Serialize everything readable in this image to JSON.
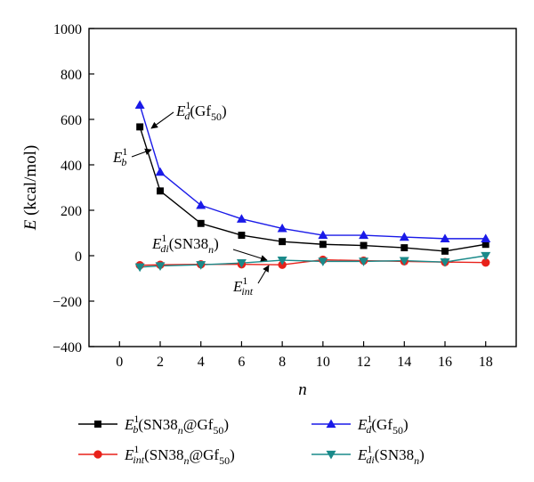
{
  "chart_data": {
    "type": "line",
    "xlabel_html": "n",
    "ylabel_prefix": "E",
    "ylabel_suffix": "(kcal/mol)",
    "xlim": [
      -1.5,
      19.5
    ],
    "ylim": [
      -400,
      1000
    ],
    "x_ticks": [
      0,
      2,
      4,
      6,
      8,
      10,
      12,
      14,
      16,
      18
    ],
    "y_ticks": [
      -400,
      -200,
      0,
      200,
      400,
      600,
      800,
      1000
    ],
    "x": [
      1,
      2,
      4,
      6,
      8,
      10,
      12,
      14,
      16,
      18
    ],
    "grid": false,
    "legend_position": "bottom",
    "series": [
      {
        "key": "eb",
        "color": "#000000",
        "marker": "square",
        "values": [
          567,
          285,
          142,
          90,
          62,
          50,
          45,
          35,
          20,
          50
        ]
      },
      {
        "key": "eint",
        "color": "#e8211a",
        "marker": "circle",
        "values": [
          -42,
          -40,
          -38,
          -38,
          -40,
          -18,
          -22,
          -25,
          -28,
          -30
        ]
      },
      {
        "key": "ed",
        "color": "#1a1ae8",
        "marker": "triangle-up",
        "values": [
          663,
          368,
          222,
          162,
          120,
          90,
          90,
          82,
          75,
          75
        ]
      },
      {
        "key": "edi",
        "color": "#1a8a8a",
        "marker": "triangle-down",
        "values": [
          -50,
          -45,
          -40,
          -32,
          -20,
          -25,
          -25,
          -22,
          -28,
          0
        ]
      }
    ],
    "legend": {
      "eb": {
        "sym": "E",
        "sub": "b",
        "sup": "1",
        "text": "(SN38",
        "text_sub": "n",
        "text2": "@Gf",
        "text2_sub": "50",
        "text3": ")"
      },
      "eint": {
        "sym": "E",
        "sub": "int",
        "sup": "1",
        "text": "(SN38",
        "text_sub": "n",
        "text2": "@Gf",
        "text2_sub": "50",
        "text3": ")"
      },
      "ed": {
        "sym": "E",
        "sub": "d",
        "sup": "1",
        "text": "(Gf",
        "text_sub": "50",
        "text2": ")",
        "text2_sub": "",
        "text3": ""
      },
      "edi": {
        "sym": "E",
        "sub": "di",
        "sup": "1",
        "text": "(SN38",
        "text_sub": "n",
        "text2": ")",
        "text2_sub": "",
        "text3": ""
      }
    },
    "annotations": {
      "ed_label": {
        "sym": "E",
        "sub": "d",
        "sup": "1",
        "text": "(Gf",
        "text_sub": "50",
        "text2": ")"
      },
      "eb_label": {
        "sym": "E",
        "sub": "b",
        "sup": "1"
      },
      "edi_label": {
        "sym": "E",
        "sub": "di",
        "sup": "1",
        "text": "(SN38",
        "text_sub": "n",
        "text2": ")"
      },
      "eint_label": {
        "sym": "E",
        "sub": "int",
        "sup": "1"
      }
    }
  }
}
